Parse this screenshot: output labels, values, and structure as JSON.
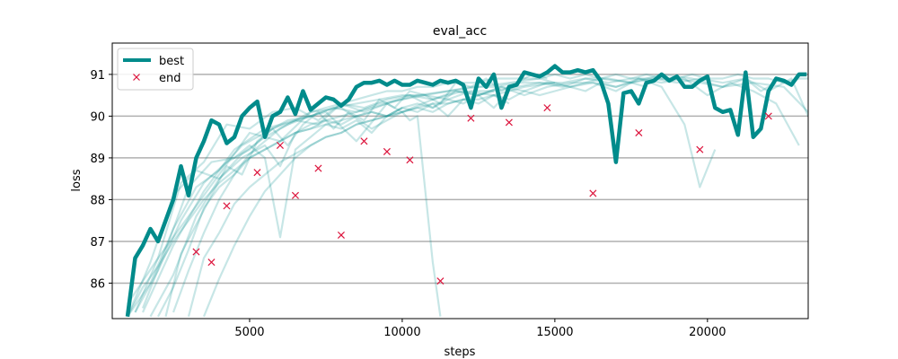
{
  "chart_data": {
    "type": "line",
    "title": "eval_acc",
    "xlabel": "steps",
    "ylabel": "loss",
    "xlim": [
      500,
      23300
    ],
    "ylim": [
      85.15,
      91.75
    ],
    "x_ticks": [
      5000,
      10000,
      15000,
      20000
    ],
    "y_ticks": [
      86,
      87,
      88,
      89,
      90,
      91
    ],
    "grid": "horizontal",
    "legend_position": "top-left",
    "colors": {
      "best": "#008b8b",
      "runs": "#008b8b",
      "end": "#dc143c"
    },
    "series": [
      {
        "name": "best",
        "x": [
          1000,
          1250,
          1500,
          1750,
          2000,
          2250,
          2500,
          2750,
          3000,
          3250,
          3500,
          3750,
          4000,
          4250,
          4500,
          4750,
          5000,
          5250,
          5500,
          5750,
          6000,
          6250,
          6500,
          6750,
          7000,
          7250,
          7500,
          7750,
          8000,
          8250,
          8500,
          8750,
          9000,
          9250,
          9500,
          9750,
          10000,
          10250,
          10500,
          10750,
          11000,
          11250,
          11500,
          11750,
          12000,
          12250,
          12500,
          12750,
          13000,
          13250,
          13500,
          13750,
          14000,
          14250,
          14500,
          14750,
          15000,
          15250,
          15500,
          15750,
          16000,
          16250,
          16500,
          16750,
          17000,
          17250,
          17500,
          17750,
          18000,
          18250,
          18500,
          18750,
          19000,
          19250,
          19500,
          19750,
          20000,
          20250,
          20500,
          20750,
          21000,
          21250,
          21500,
          21750,
          22000,
          22250,
          22500,
          22750,
          23000,
          23250
        ],
        "y": [
          85.2,
          86.6,
          86.9,
          87.3,
          87.0,
          87.5,
          88.0,
          88.8,
          88.1,
          89.0,
          89.4,
          89.9,
          89.8,
          89.35,
          89.5,
          90.0,
          90.2,
          90.35,
          89.5,
          90.0,
          90.1,
          90.45,
          90.05,
          90.6,
          90.15,
          90.3,
          90.45,
          90.4,
          90.25,
          90.4,
          90.7,
          90.8,
          90.8,
          90.85,
          90.75,
          90.85,
          90.75,
          90.75,
          90.85,
          90.8,
          90.75,
          90.85,
          90.8,
          90.85,
          90.75,
          90.2,
          90.9,
          90.7,
          91.0,
          90.2,
          90.7,
          90.75,
          91.05,
          91.0,
          90.95,
          91.05,
          91.2,
          91.05,
          91.05,
          91.1,
          91.05,
          91.1,
          90.85,
          90.3,
          88.9,
          90.55,
          90.6,
          90.3,
          90.8,
          90.85,
          91.0,
          90.85,
          90.95,
          90.7,
          90.7,
          90.85,
          90.95,
          90.2,
          90.1,
          90.15,
          89.55,
          91.05,
          89.5,
          89.7,
          90.6,
          90.9,
          90.85,
          90.75,
          91.0,
          91.0
        ]
      },
      {
        "name": "end",
        "x": [
          3250,
          3750,
          4250,
          5250,
          6000,
          6500,
          7250,
          8000,
          8750,
          9500,
          10250,
          11250,
          12250,
          13500,
          14750,
          16250,
          17750,
          19750,
          22000
        ],
        "y": [
          86.75,
          86.5,
          87.85,
          88.65,
          89.3,
          88.1,
          88.75,
          87.15,
          89.4,
          89.15,
          88.95,
          86.05,
          89.95,
          89.85,
          90.2,
          88.15,
          89.6,
          89.2,
          90.0
        ]
      }
    ],
    "runs": [
      {
        "x": [
          1000,
          2000,
          3000,
          4000,
          5000,
          6000,
          7000,
          8000,
          9000,
          10000,
          11000,
          12000,
          13000,
          14000,
          15000
        ],
        "y": [
          85.5,
          86.6,
          87.6,
          88.6,
          89.6,
          89.4,
          90.1,
          90.2,
          89.7,
          90.1,
          90.4,
          90.6,
          90.5,
          90.7,
          90.8
        ]
      },
      {
        "x": [
          1500,
          2500,
          3500,
          4500,
          5500,
          6500,
          7500,
          8500,
          9500,
          10500,
          11500,
          12500,
          13500,
          14500,
          15500,
          16500,
          17500,
          18500,
          19500,
          20500,
          21500,
          22500,
          23300
        ],
        "y": [
          85.3,
          86.9,
          88.2,
          89.2,
          89.7,
          89.9,
          90.1,
          89.4,
          90.3,
          90.5,
          90.6,
          90.7,
          90.8,
          90.9,
          90.7,
          90.9,
          90.8,
          91.0,
          90.9,
          90.7,
          90.8,
          90.7,
          90.1
        ]
      },
      {
        "x": [
          1000,
          1750,
          2500,
          3250,
          4000,
          4750,
          5500,
          6250,
          7000,
          7750,
          8500,
          9250,
          10000,
          10750,
          11500,
          12250,
          13000,
          13750,
          14500,
          15250,
          16000,
          16750,
          17500,
          18250,
          19000,
          19750,
          20500,
          21250,
          22000,
          22750,
          23300
        ],
        "y": [
          85.2,
          86.0,
          87.3,
          88.3,
          88.7,
          89.3,
          89.6,
          89.9,
          90.0,
          90.2,
          90.1,
          90.3,
          90.4,
          90.5,
          90.4,
          90.6,
          90.6,
          90.7,
          90.8,
          90.7,
          90.9,
          90.9,
          90.8,
          90.9,
          90.9,
          90.8,
          90.7,
          90.9,
          90.6,
          90.9,
          90.0
        ]
      },
      {
        "x": [
          1250,
          2000,
          2750,
          3500,
          4250,
          5000,
          5750,
          6500,
          7250,
          8000,
          8750,
          9500,
          10250,
          11000,
          11750,
          12500,
          13250,
          14000,
          14750,
          15500,
          16250,
          17000,
          17750,
          18500,
          19250,
          20000,
          20750,
          21500,
          22250,
          23000
        ],
        "y": [
          85.3,
          86.3,
          87.5,
          88.4,
          88.9,
          89.2,
          89.7,
          89.9,
          89.8,
          90.3,
          90.1,
          90.3,
          90.5,
          90.2,
          90.6,
          90.5,
          90.7,
          90.5,
          90.7,
          90.8,
          90.8,
          90.7,
          90.9,
          90.8,
          90.9,
          90.5,
          90.8,
          90.6,
          90.3,
          89.3
        ]
      },
      {
        "x": [
          1000,
          1750,
          2500,
          3250,
          4000,
          4750,
          5500,
          6000,
          6500,
          7000,
          7500,
          8000,
          8500,
          9000,
          9500,
          10000,
          10250,
          10500,
          11000,
          11250
        ],
        "y": [
          85.2,
          86.5,
          88.1,
          88.7,
          88.5,
          89.0,
          89.3,
          88.8,
          89.6,
          89.8,
          89.9,
          90.0,
          90.1,
          90.2,
          90.3,
          90.1,
          89.9,
          90.0,
          86.5,
          85.2
        ]
      },
      {
        "x": [
          2000,
          2500,
          3000,
          3500,
          4000,
          4500,
          5000,
          5500,
          6000,
          6500,
          7000,
          7500,
          8000,
          8500,
          9000,
          9500,
          10000,
          10500,
          11000,
          11500,
          12000,
          12500,
          13000
        ],
        "y": [
          85.2,
          85.9,
          86.8,
          87.8,
          88.3,
          88.6,
          89.0,
          89.2,
          89.4,
          89.6,
          89.7,
          89.9,
          89.8,
          90.0,
          90.1,
          90.0,
          90.2,
          90.3,
          90.2,
          90.4,
          90.3,
          90.5,
          90.6
        ]
      },
      {
        "x": [
          2250,
          2750,
          3250,
          3750,
          4250,
          4750,
          5250,
          5750,
          6250,
          6750,
          7250,
          7750,
          8250,
          8750,
          9250,
          9750,
          10250,
          10750,
          11250,
          11750,
          12250,
          12750,
          13250,
          13750,
          14250,
          14750
        ],
        "y": [
          85.2,
          86.7,
          87.4,
          88.1,
          88.8,
          88.6,
          89.4,
          89.7,
          89.3,
          89.8,
          90.1,
          89.7,
          90.1,
          89.9,
          90.4,
          90.2,
          90.6,
          90.5,
          90.3,
          90.8,
          90.7,
          90.9,
          90.6,
          90.8,
          91.0,
          90.9
        ]
      },
      {
        "x": [
          1500,
          2250,
          3000,
          3750,
          4500,
          5000,
          5500,
          6000,
          6500,
          7000,
          7500,
          8000,
          8500,
          9000,
          9500,
          10000,
          10500,
          11000,
          11500,
          12000,
          12500,
          13000,
          13500
        ],
        "y": [
          85.4,
          86.8,
          88.3,
          88.9,
          89.0,
          89.3,
          89.0,
          87.1,
          89.2,
          89.5,
          89.8,
          89.7,
          89.9,
          89.6,
          90.0,
          90.2,
          90.1,
          90.3,
          90.0,
          90.4,
          90.5,
          90.2,
          90.6
        ]
      },
      {
        "x": [
          1250,
          2000,
          2750,
          3500,
          4250,
          5000,
          5750,
          6500,
          7250,
          8000,
          8750,
          9500,
          10250,
          11000,
          11750,
          12500,
          13250,
          14000,
          14750,
          15500,
          16250,
          17000,
          17750,
          18500,
          19250,
          19750,
          20250
        ],
        "y": [
          85.3,
          86.6,
          88.4,
          88.9,
          89.8,
          89.7,
          90.1,
          90.2,
          89.9,
          90.3,
          90.2,
          90.4,
          90.5,
          90.4,
          90.6,
          90.5,
          90.7,
          90.6,
          90.8,
          90.7,
          90.8,
          90.6,
          90.9,
          90.7,
          89.8,
          88.3,
          89.2
        ]
      },
      {
        "x": [
          3000,
          3500,
          4000,
          4500,
          5000,
          5500,
          6000,
          6500,
          7000,
          7500,
          8000,
          8500,
          9000,
          9500,
          10000,
          10500,
          11000,
          11500,
          12000,
          12500,
          13000,
          13500,
          14000,
          14500,
          15000,
          15500,
          16000,
          16500,
          17000,
          17500,
          18000
        ],
        "y": [
          85.2,
          86.6,
          87.2,
          87.9,
          88.3,
          88.6,
          88.9,
          89.1,
          89.3,
          89.5,
          89.6,
          89.8,
          89.9,
          90.0,
          90.1,
          90.2,
          90.1,
          90.3,
          90.4,
          90.3,
          90.5,
          90.4,
          90.6,
          90.5,
          90.6,
          90.7,
          90.6,
          90.8,
          90.7,
          90.8,
          90.7
        ]
      },
      {
        "x": [
          3500,
          4000,
          4500,
          5000,
          5500,
          6000,
          6500,
          7000,
          7500,
          8000,
          8500,
          9000,
          9500,
          10000,
          10500,
          11000,
          11500,
          12000,
          12500,
          13000,
          13500
        ],
        "y": [
          85.2,
          86.1,
          86.9,
          87.6,
          88.2,
          88.6,
          89.0,
          89.3,
          89.5,
          89.6,
          89.8,
          89.9,
          90.0,
          90.1,
          90.2,
          90.3,
          90.3,
          90.4,
          90.4,
          90.5,
          90.3
        ]
      },
      {
        "x": [
          1000,
          1500,
          2000,
          2500,
          3000,
          3500,
          4000,
          4500,
          5000,
          5500,
          6000,
          6500,
          7000,
          7500,
          8000,
          8500,
          9000,
          9500,
          10000
        ],
        "y": [
          85.2,
          85.9,
          86.4,
          87.0,
          87.5,
          88.0,
          88.4,
          88.7,
          89.0,
          89.2,
          89.4,
          89.6,
          89.7,
          89.8,
          89.9,
          90.0,
          90.1,
          90.0,
          90.2
        ]
      },
      {
        "x": [
          2500,
          3000,
          3500,
          4000,
          4500,
          5000,
          5500,
          6000,
          6500,
          7000,
          7500,
          8000,
          8500,
          9000,
          9500,
          10000,
          10500,
          11000,
          11500,
          12000,
          12500,
          13000,
          13500,
          14000,
          14500,
          15000,
          15500,
          16000,
          16500,
          17000,
          17500,
          18000,
          18500,
          19000,
          19500,
          20000,
          20500,
          21000,
          21500,
          22000,
          22500,
          23000,
          23300
        ],
        "y": [
          85.3,
          86.3,
          87.2,
          88.0,
          88.6,
          89.1,
          89.4,
          89.7,
          89.9,
          90.1,
          90.2,
          90.3,
          90.4,
          90.5,
          90.6,
          90.6,
          90.7,
          90.7,
          90.8,
          90.8,
          90.8,
          90.9,
          90.9,
          90.9,
          90.9,
          91.0,
          90.9,
          91.0,
          90.9,
          91.0,
          90.9,
          91.0,
          90.9,
          90.9,
          91.0,
          90.9,
          90.9,
          91.0,
          90.9,
          90.9,
          90.8,
          90.9,
          90.9
        ]
      },
      {
        "x": [
          1750,
          2500,
          3250,
          4000,
          4750,
          5500,
          6250,
          7000,
          7750,
          8500,
          9250,
          10000,
          10750,
          11500,
          12250,
          13000,
          13750,
          14500,
          15250,
          16000,
          16750,
          17500,
          18250,
          19000,
          19750,
          20500,
          21250,
          21750,
          22250
        ],
        "y": [
          85.2,
          86.2,
          87.6,
          88.5,
          89.1,
          89.5,
          89.8,
          90.0,
          90.2,
          90.3,
          90.4,
          90.5,
          90.5,
          90.6,
          90.7,
          90.7,
          90.8,
          90.8,
          90.8,
          90.9,
          90.8,
          90.9,
          90.9,
          90.8,
          90.9,
          90.8,
          90.9,
          90.6,
          90.8
        ]
      }
    ]
  }
}
